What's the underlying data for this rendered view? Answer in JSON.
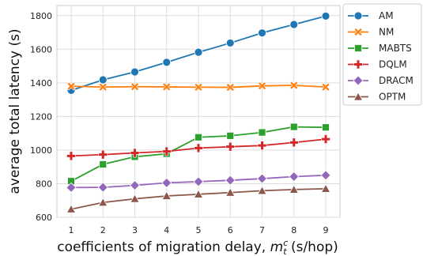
{
  "chart_data": {
    "type": "line",
    "xlabel": "coefficients of migration delay, ",
    "xlabel_math": {
      "base": "m",
      "sub": "t",
      "sup": "c"
    },
    "xlabel_unit": " (s/hop)",
    "ylabel": "average total latency (s)",
    "x": [
      1,
      2,
      3,
      4,
      5,
      6,
      7,
      8,
      9
    ],
    "xticks": [
      "1",
      "2",
      "3",
      "4",
      "5",
      "6",
      "7",
      "8",
      "9"
    ],
    "yticks": [
      "600",
      "800",
      "1000",
      "1200",
      "1400",
      "1600",
      "1800"
    ],
    "ylim": [
      600,
      1860
    ],
    "grid": true,
    "legend_position": "outside-top-right",
    "series": [
      {
        "name": "AM",
        "color": "#1f77b4",
        "marker": "circle",
        "values": [
          1355,
          1418,
          1465,
          1522,
          1582,
          1637,
          1697,
          1747,
          1797
        ]
      },
      {
        "name": "NM",
        "color": "#ff7f0e",
        "marker": "x",
        "values": [
          1380,
          1375,
          1377,
          1376,
          1374,
          1373,
          1382,
          1385,
          1375
        ]
      },
      {
        "name": "MABTS",
        "color": "#2ca02c",
        "marker": "square",
        "values": [
          815,
          915,
          960,
          978,
          1076,
          1085,
          1105,
          1138,
          1135
        ]
      },
      {
        "name": "DQLM",
        "color": "#d62728",
        "marker": "plus",
        "values": [
          965,
          973,
          983,
          992,
          1012,
          1020,
          1027,
          1045,
          1065
        ]
      },
      {
        "name": "DRACM",
        "color": "#9467bd",
        "marker": "diamond",
        "values": [
          777,
          778,
          790,
          805,
          812,
          820,
          830,
          842,
          850
        ]
      },
      {
        "name": "OPTM",
        "color": "#8c564b",
        "marker": "triangle",
        "values": [
          648,
          688,
          710,
          727,
          737,
          747,
          758,
          765,
          770
        ]
      }
    ]
  }
}
